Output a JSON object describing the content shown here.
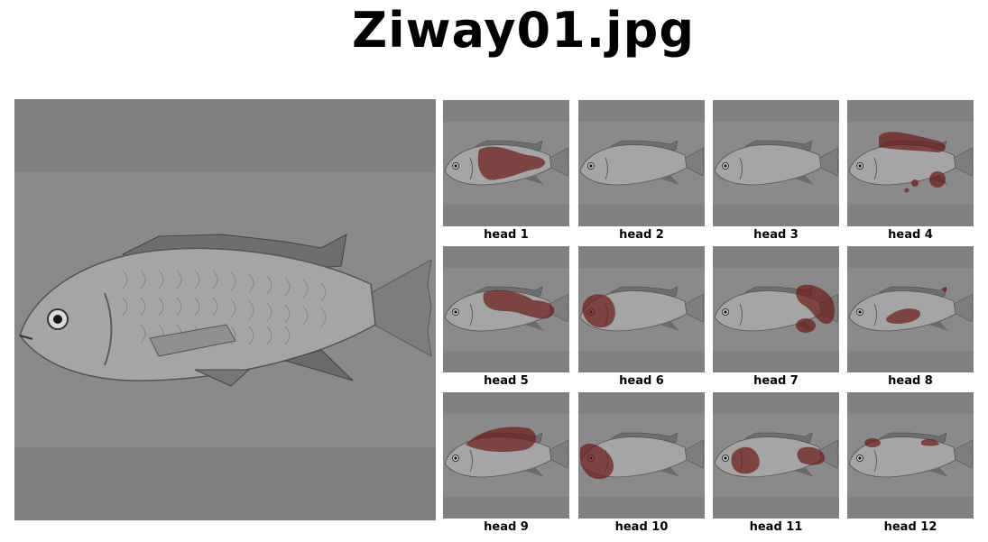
{
  "title": "Ziway01.jpg",
  "colors": {
    "pad": "#808080",
    "photo_bg": "#8a8a8a",
    "fish": "#9c9c9c",
    "attention": "#6b1a1a"
  },
  "heads": [
    {
      "label": "head 1"
    },
    {
      "label": "head 2"
    },
    {
      "label": "head 3"
    },
    {
      "label": "head 4"
    },
    {
      "label": "head 5"
    },
    {
      "label": "head 6"
    },
    {
      "label": "head 7"
    },
    {
      "label": "head 8"
    },
    {
      "label": "head 9"
    },
    {
      "label": "head 10"
    },
    {
      "label": "head 11"
    },
    {
      "label": "head 12"
    }
  ]
}
